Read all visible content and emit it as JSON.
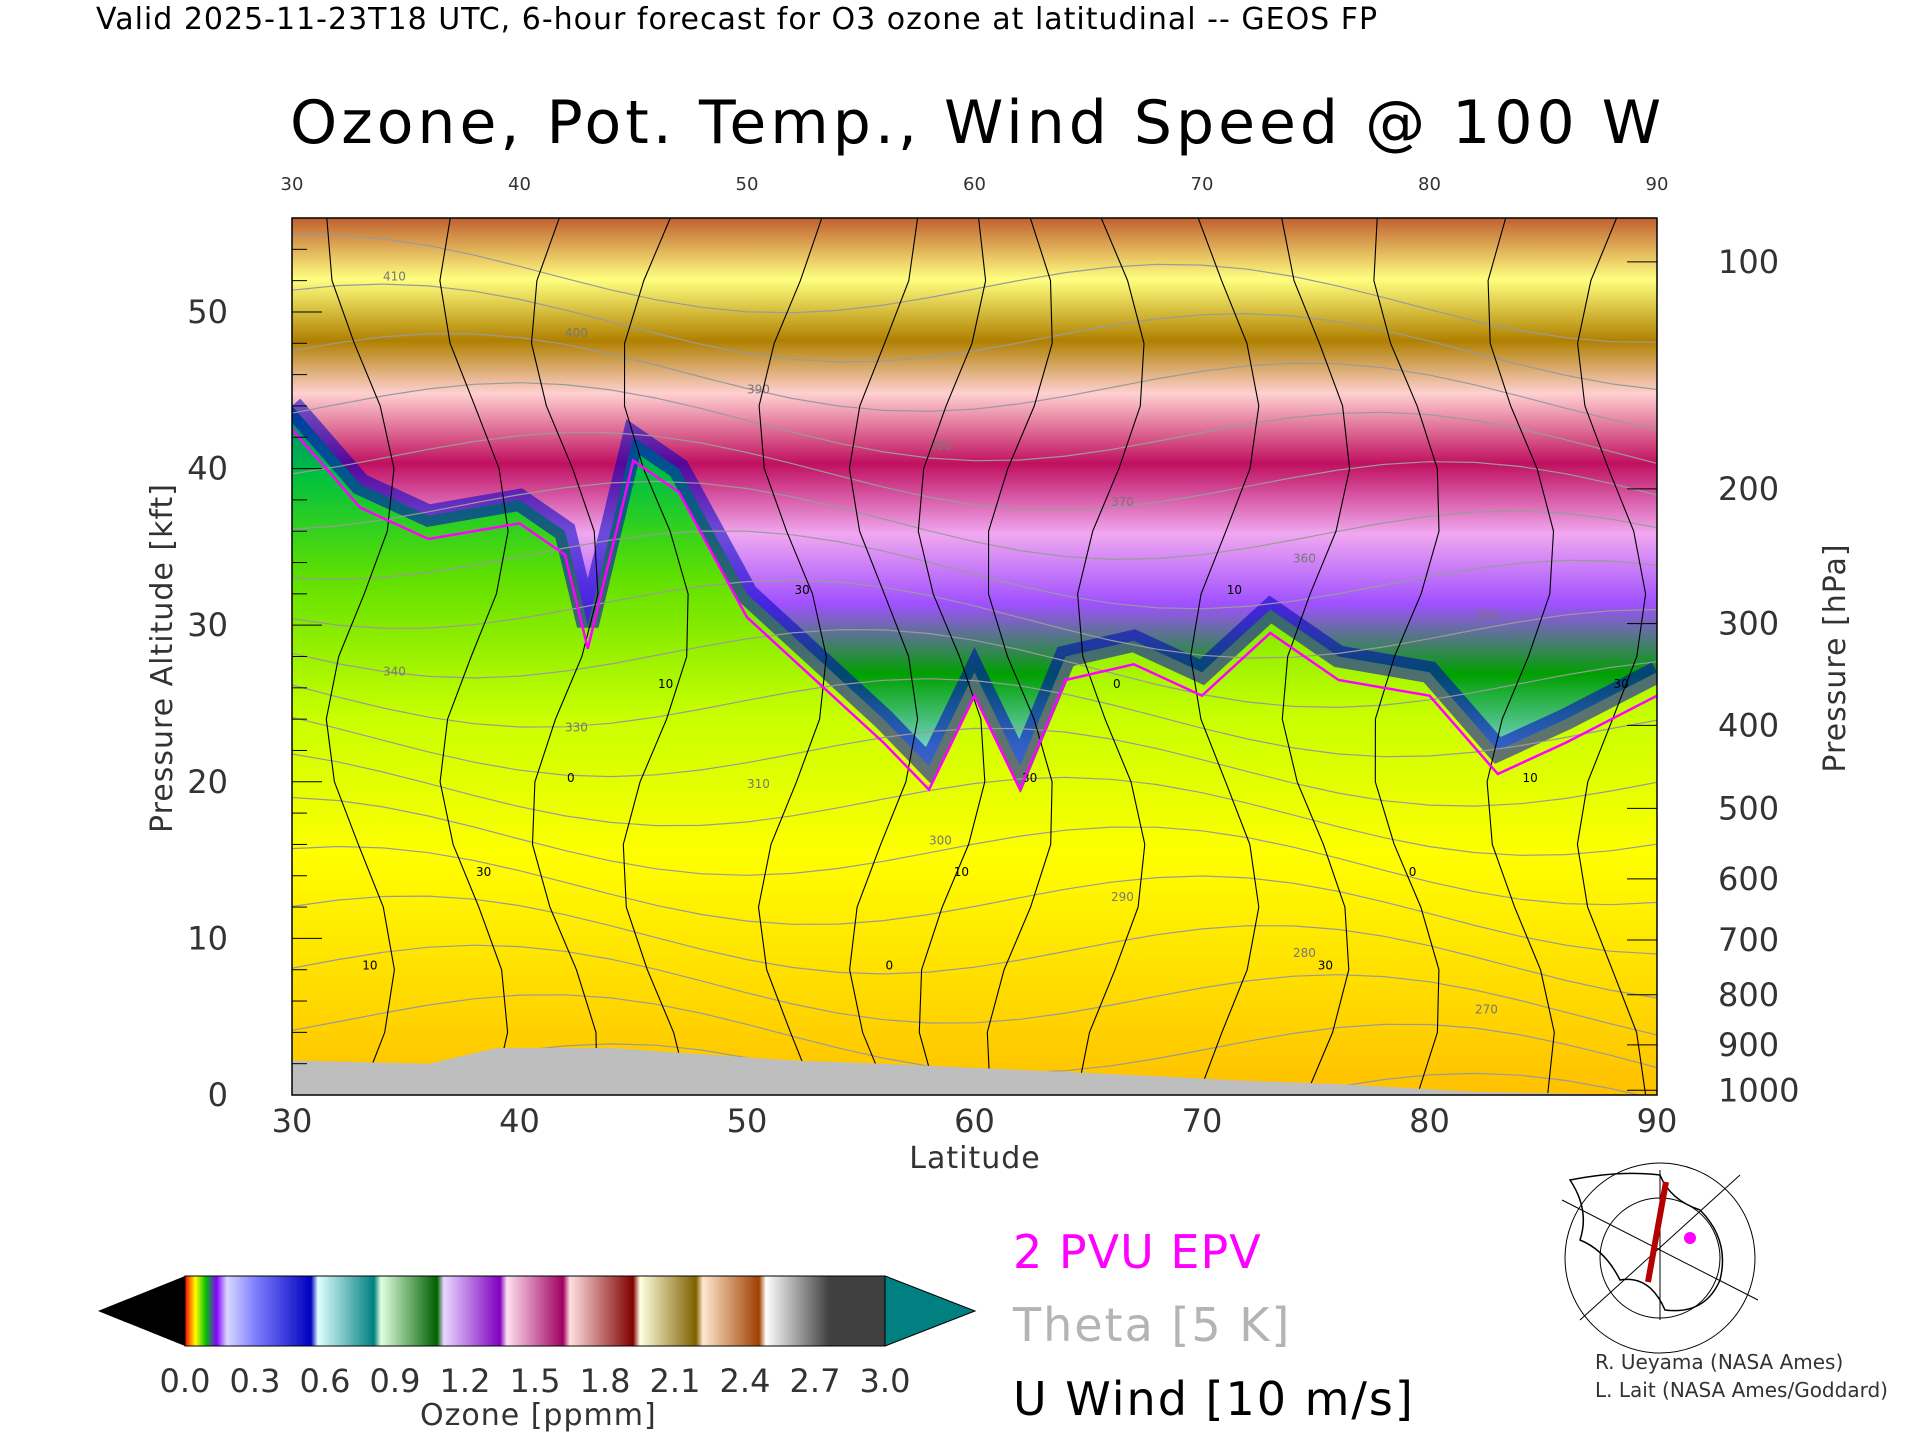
{
  "header": "Valid 2025-11-23T18 UTC, 6-hour forecast for O3 ozone at latitudinal -- GEOS FP",
  "chart_data": {
    "type": "heatmap",
    "title": "Ozone, Pot. Temp., Wind Speed @ 100 W",
    "xlabel": "Latitude",
    "ylabel": "Pressure Altitude [kft]",
    "ylabel_right": "Pressure [hPa]",
    "xlim": [
      30,
      90
    ],
    "ylim": [
      0,
      56
    ],
    "x_ticks": [
      "30",
      "40",
      "50",
      "60",
      "70",
      "80",
      "90"
    ],
    "y_ticks": [
      "0",
      "10",
      "20",
      "30",
      "40",
      "50"
    ],
    "right_ticks": [
      {
        "label": "100",
        "kft": 53.2
      },
      {
        "label": "200",
        "kft": 38.7
      },
      {
        "label": "300",
        "kft": 30.1
      },
      {
        "label": "400",
        "kft": 23.6
      },
      {
        "label": "500",
        "kft": 18.3
      },
      {
        "label": "600",
        "kft": 13.8
      },
      {
        "label": "700",
        "kft": 9.9
      },
      {
        "label": "800",
        "kft": 6.4
      },
      {
        "label": "900",
        "kft": 3.2
      },
      {
        "label": "1000",
        "kft": 0.3
      }
    ],
    "colorbar": {
      "label": "Ozone [ppmm]",
      "ticks": [
        "0.0",
        "0.3",
        "0.6",
        "0.9",
        "1.2",
        "1.5",
        "1.8",
        "2.1",
        "2.4",
        "2.7",
        "3.0"
      ],
      "range": [
        0,
        3.0
      ]
    },
    "tropopause_kft": [
      {
        "lat": 30,
        "kft": 44
      },
      {
        "lat": 33,
        "kft": 39
      },
      {
        "lat": 36,
        "kft": 37
      },
      {
        "lat": 40,
        "kft": 38
      },
      {
        "lat": 42,
        "kft": 36
      },
      {
        "lat": 43,
        "kft": 30
      },
      {
        "lat": 45,
        "kft": 42
      },
      {
        "lat": 47,
        "kft": 40
      },
      {
        "lat": 50,
        "kft": 32
      },
      {
        "lat": 53,
        "kft": 28
      },
      {
        "lat": 56,
        "kft": 24
      },
      {
        "lat": 58,
        "kft": 21
      },
      {
        "lat": 60,
        "kft": 27
      },
      {
        "lat": 62,
        "kft": 21
      },
      {
        "lat": 64,
        "kft": 28
      },
      {
        "lat": 67,
        "kft": 29
      },
      {
        "lat": 70,
        "kft": 27
      },
      {
        "lat": 73,
        "kft": 31
      },
      {
        "lat": 76,
        "kft": 28
      },
      {
        "lat": 80,
        "kft": 27
      },
      {
        "lat": 83,
        "kft": 22
      },
      {
        "lat": 86,
        "kft": 24
      },
      {
        "lat": 90,
        "kft": 27
      }
    ],
    "theta_labels": [
      "410",
      "400",
      "390",
      "380",
      "370",
      "360",
      "350",
      "340",
      "330",
      "310",
      "300",
      "290",
      "280",
      "270"
    ],
    "wind_labels": [
      "10",
      "30",
      "0"
    ]
  },
  "legend": {
    "epv": "2 PVU EPV",
    "theta": "Theta [5 K]",
    "u": "U Wind [10 m/s]"
  },
  "credits": {
    "line1": "R. Ueyama (NASA Ames)",
    "line2": "L. Lait (NASA Ames/Goddard)"
  },
  "colors": {
    "epv": "#ff00ff",
    "theta": "#b4b4b4",
    "wind": "#000000",
    "ground": "#bebebe"
  }
}
